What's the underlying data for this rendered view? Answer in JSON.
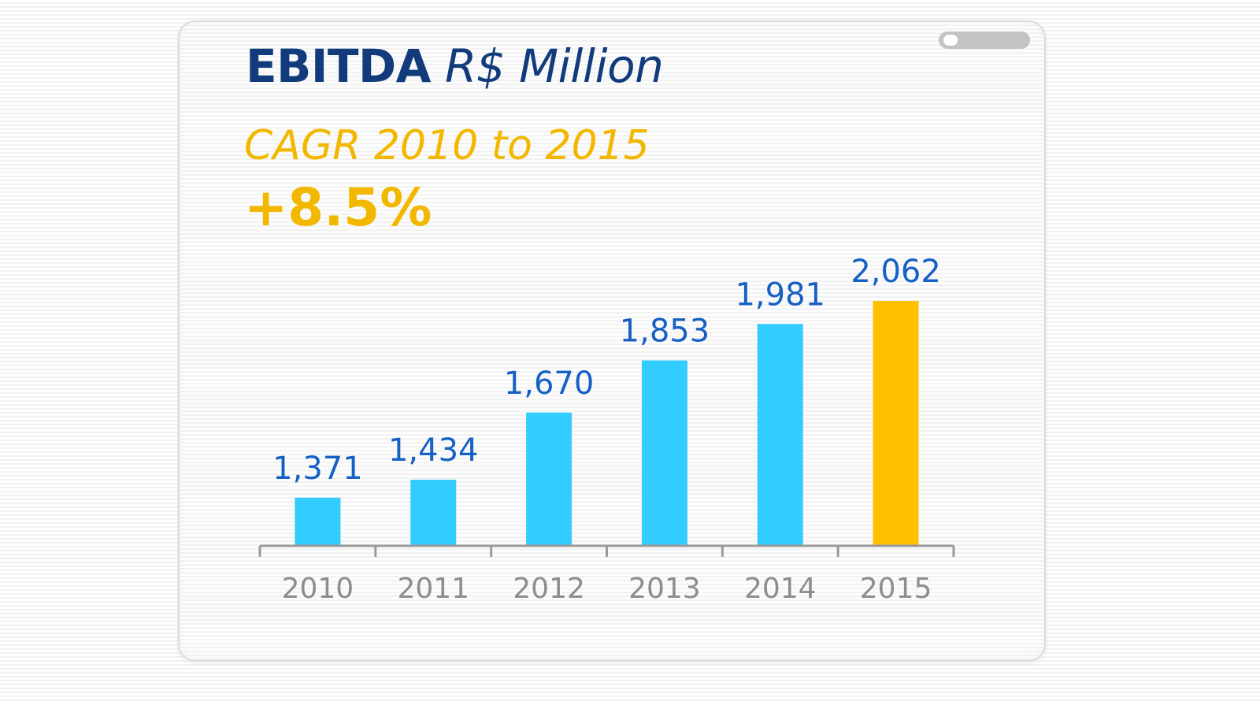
{
  "header": {
    "title_main": "EBITDA",
    "title_unit": "R$ Million",
    "cagr_label": "CAGR 2010 to 2015",
    "cagr_value": "+8.5%"
  },
  "toggle": {
    "state": "off"
  },
  "colors": {
    "title": "#123b7c",
    "accent_yellow": "#f2b800",
    "bar_default": "#33ccff",
    "bar_highlight": "#ffc000",
    "value_label": "#1560c4",
    "axis": "#9a9a9a",
    "tick_label": "#8d8d8d"
  },
  "chart_data": {
    "type": "bar",
    "title": "EBITDA R$ Million",
    "subtitle": "CAGR 2010 to 2015 +8.5%",
    "xlabel": "",
    "ylabel": "",
    "categories": [
      "2010",
      "2011",
      "2012",
      "2013",
      "2014",
      "2015"
    ],
    "values": [
      1371,
      1434,
      1670,
      1853,
      1981,
      2062
    ],
    "value_labels": [
      "1,371",
      "1,434",
      "1,670",
      "1,853",
      "1,981",
      "2,062"
    ],
    "highlight_index": 5,
    "ylim": [
      1202,
      2062
    ],
    "grid": false,
    "legend": "none"
  }
}
